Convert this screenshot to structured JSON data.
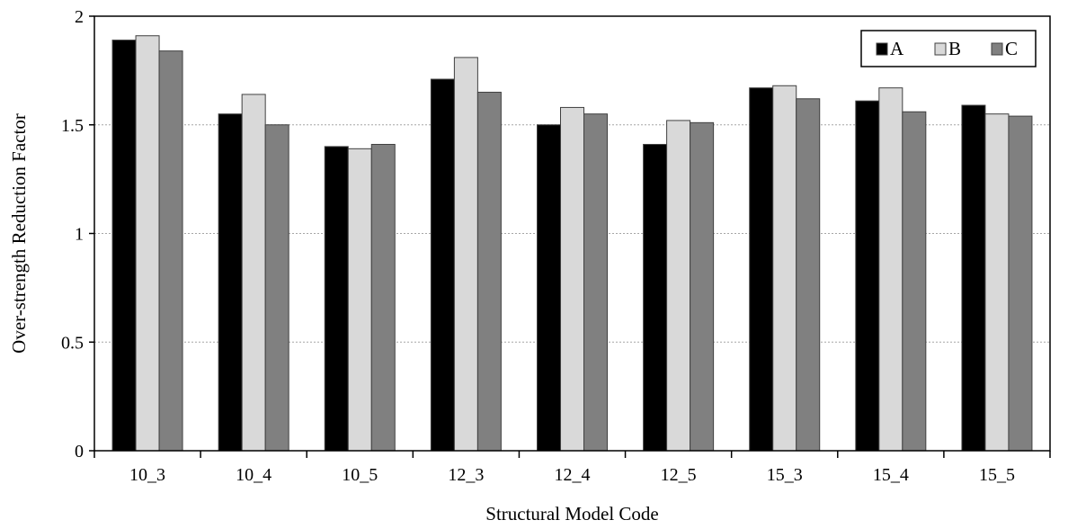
{
  "chart_data": {
    "type": "bar",
    "title": "",
    "xlabel": "Structural Model Code",
    "ylabel": "Over-strength Reduction Factor",
    "categories": [
      "10_3",
      "10_4",
      "10_5",
      "12_3",
      "12_4",
      "12_5",
      "15_3",
      "15_4",
      "15_5"
    ],
    "series": [
      {
        "name": "A",
        "color": "#000000",
        "values": [
          1.89,
          1.55,
          1.4,
          1.71,
          1.5,
          1.41,
          1.67,
          1.61,
          1.59
        ]
      },
      {
        "name": "B",
        "color": "#d9d9d9",
        "values": [
          1.91,
          1.64,
          1.39,
          1.81,
          1.58,
          1.52,
          1.68,
          1.67,
          1.55
        ]
      },
      {
        "name": "C",
        "color": "#808080",
        "values": [
          1.84,
          1.5,
          1.41,
          1.65,
          1.55,
          1.51,
          1.62,
          1.56,
          1.54
        ]
      }
    ],
    "ylim": [
      0,
      2
    ],
    "yticks": [
      0,
      0.5,
      1,
      1.5,
      2
    ],
    "ytick_labels": [
      "0",
      "0.5",
      "1",
      "1.5",
      "2"
    ],
    "grid": "horizontal dotted",
    "legend_position": "top-right"
  }
}
